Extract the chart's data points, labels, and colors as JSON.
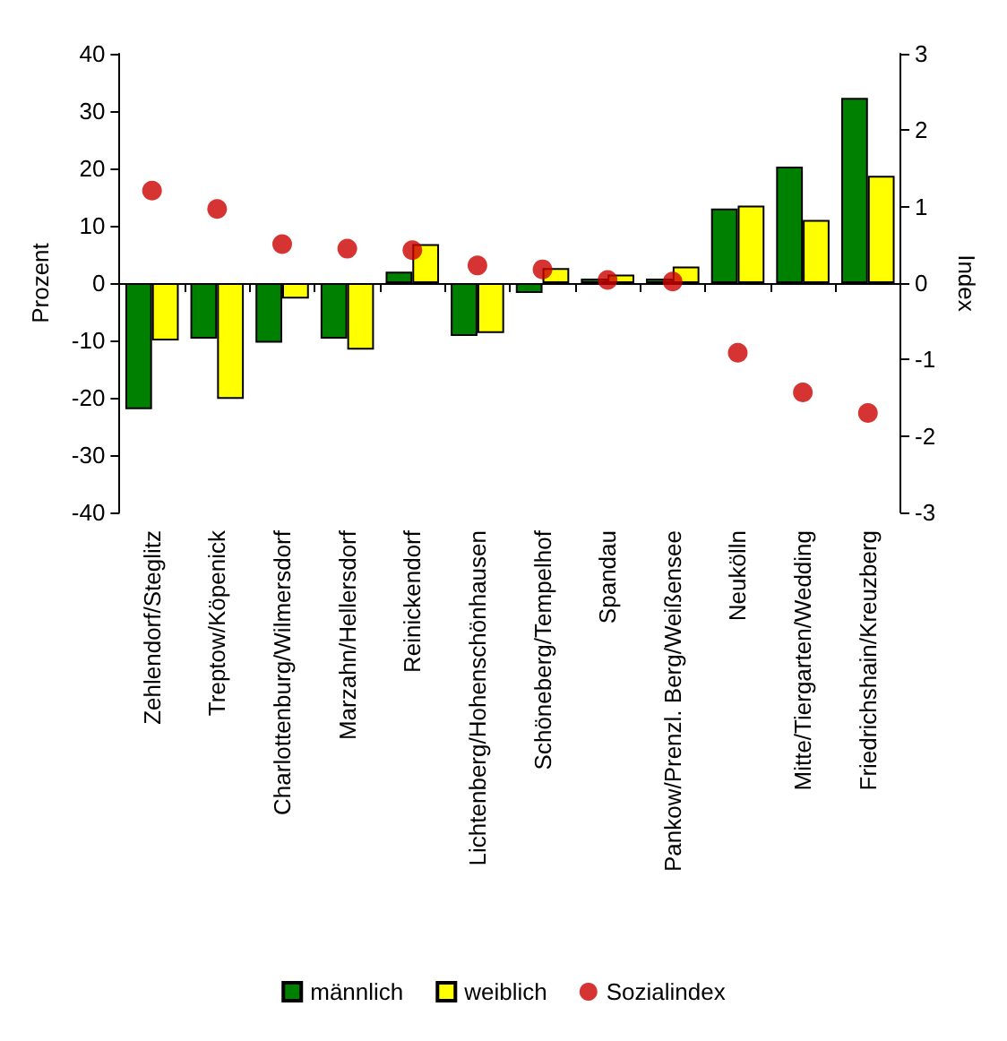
{
  "chart_data": {
    "type": "bar",
    "ylabel": "Prozent",
    "y2label": "Index",
    "categories": [
      "Zehlendorf/Steglitz",
      "Treptow/Köpenick",
      "Charlottenburg/Wilmersdorf",
      "Marzahn/Hellersdorf",
      "Reinickendorf",
      "Lichtenberg/Hohenschönhausen",
      "Schöneberg/Tempelhof",
      "Spandau",
      "Pankow/Prenzl. Berg/Weißensee",
      "Neukölln",
      "Mitte/Tiergarten/Wedding",
      "Friedrichshain/Kreuzberg"
    ],
    "series": [
      {
        "name": "männlich",
        "color": "#008000",
        "values": [
          -22,
          -9.7,
          -10.4,
          -9.7,
          2,
          -9.2,
          -1.7,
          0.8,
          0.8,
          13,
          20.3,
          32.3
        ]
      },
      {
        "name": "weiblich",
        "color": "#ffff00",
        "values": [
          -10,
          -20.2,
          -2.7,
          -11.6,
          6.8,
          -8.7,
          2.6,
          1.5,
          2.9,
          13.5,
          11,
          18.7
        ]
      },
      {
        "name": "Sozialindex",
        "type": "scatter",
        "axis": "y2",
        "color": "#cc0000",
        "marker": "circle",
        "values": [
          1.21,
          0.97,
          0.51,
          0.45,
          0.43,
          0.23,
          0.18,
          0.04,
          0.02,
          -0.91,
          -1.43,
          -1.7
        ]
      }
    ],
    "ylim": [
      -40,
      40
    ],
    "yticks": [
      -40,
      -30,
      -20,
      -10,
      0,
      10,
      20,
      30,
      40
    ],
    "y2lim": [
      -3,
      3
    ],
    "y2ticks": [
      -3,
      -2,
      -1,
      0,
      1,
      2,
      3
    ],
    "legend": "bottom"
  }
}
